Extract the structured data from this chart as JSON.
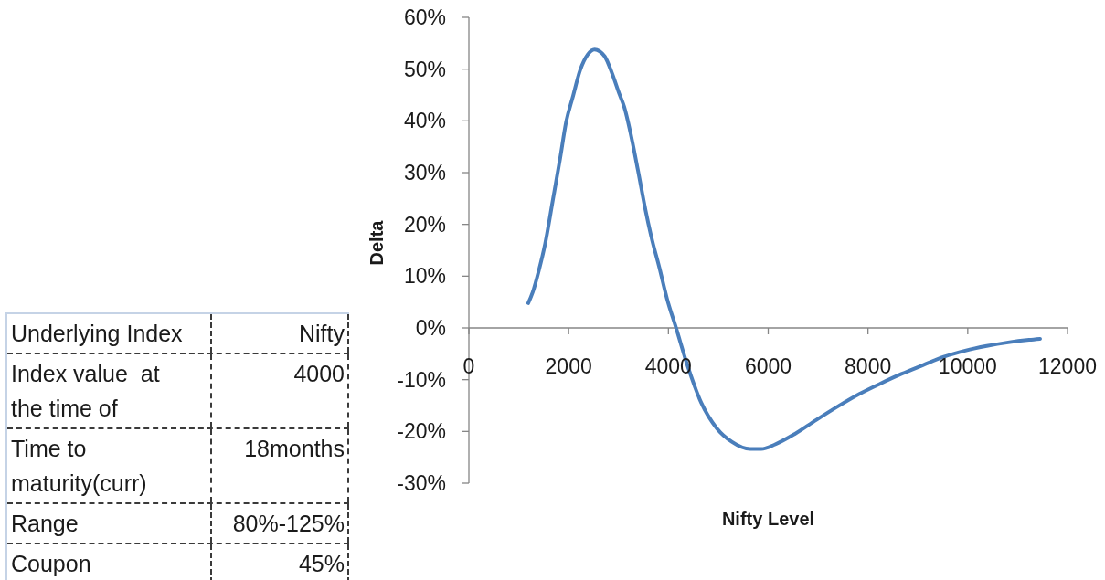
{
  "chart_data": [
    {
      "type": "line",
      "xlabel": "Nifty Level",
      "ylabel": "Delta",
      "x": [
        1190,
        1280,
        1400,
        1530,
        1680,
        1830,
        1950,
        2080,
        2230,
        2380,
        2520,
        2720,
        2870,
        3020,
        3110,
        3270,
        3390,
        3540,
        3660,
        3820,
        3970,
        4150,
        4400,
        4660,
        4970,
        5270,
        5640,
        5860,
        6140,
        6530,
        6960,
        7390,
        7820,
        8240,
        8670,
        9100,
        9520,
        9950,
        10380,
        10810,
        11230,
        11450
      ],
      "series": [
        {
          "color": "#4a7ebb",
          "values": [
            4.8,
            6.9,
            11.0,
            16.3,
            24.5,
            32.8,
            39.8,
            44.5,
            49.8,
            52.8,
            53.8,
            52.5,
            49.2,
            45.1,
            42.8,
            36.3,
            30.4,
            22.8,
            17.5,
            11.6,
            5.7,
            0.1,
            -7.8,
            -14.5,
            -19.4,
            -22.0,
            -23.4,
            -23.4,
            -22.5,
            -20.5,
            -17.8,
            -15.2,
            -12.8,
            -10.8,
            -8.9,
            -7.2,
            -5.6,
            -4.4,
            -3.5,
            -2.8,
            -2.3,
            -2.1
          ]
        }
      ],
      "xlim": [
        0,
        12000
      ],
      "xticks": [
        0,
        2000,
        4000,
        6000,
        8000,
        10000,
        12000
      ],
      "ylim": [
        -30,
        60
      ],
      "yticks": [
        {
          "value": -30,
          "label": "-30%"
        },
        {
          "value": -20,
          "label": "-20%"
        },
        {
          "value": -10,
          "label": "-10%"
        },
        {
          "value": 0,
          "label": "0%"
        },
        {
          "value": 10,
          "label": "10%"
        },
        {
          "value": 20,
          "label": "20%"
        },
        {
          "value": 30,
          "label": "30%"
        },
        {
          "value": 40,
          "label": "40%"
        },
        {
          "value": 50,
          "label": "50%"
        },
        {
          "value": 60,
          "label": "60%"
        }
      ]
    },
    {
      "type": "other",
      "annotations": [
        "Underlying Index",
        "Nifty",
        "Index value  at the time of",
        "4000",
        "Time to maturity(curr)",
        "18months",
        "Range",
        "80%-125%",
        "Coupon",
        "45%"
      ]
    }
  ]
}
